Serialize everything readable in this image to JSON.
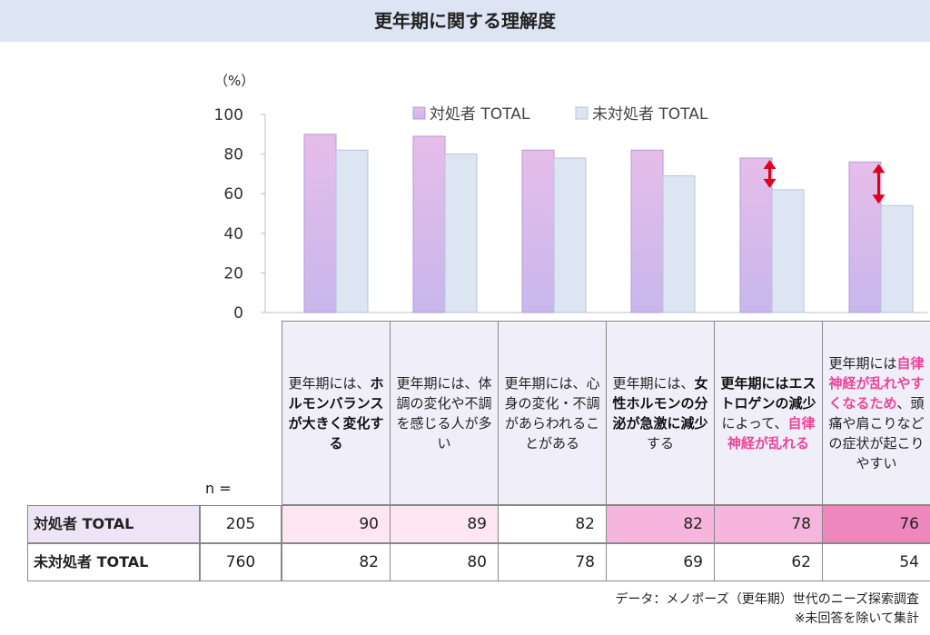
{
  "title": "更年期に関する理解度",
  "unit_label": "（%）",
  "chart_data": {
    "type": "bar",
    "ylim": [
      0,
      100
    ],
    "yticks": [
      "0",
      "20",
      "40",
      "60",
      "80",
      "100"
    ],
    "grid": false,
    "legend_placement": "top",
    "categories": [
      "更年期には、ホルモンバランスが大きく変化する",
      "更年期には、体調の変化や不調を感じる人が多い",
      "更年期には、心身の変化・不調があらわれることがある",
      "更年期には、女性ホルモンの分泌が急激に減少する",
      "更年期にはエストロゲンの減少によって、自律神経が乱れる",
      "更年期には自律神経が乱れやすくなるため、頭痛や肩こりなどの症状が起こりやすい"
    ],
    "series": [
      {
        "name": "対処者 TOTAL",
        "values": [
          90,
          89,
          82,
          82,
          78,
          76
        ],
        "color": "#d9b5e8"
      },
      {
        "name": "未対処者 TOTAL",
        "values": [
          82,
          80,
          78,
          69,
          62,
          54
        ],
        "color": "#dde5f3"
      }
    ],
    "annotations": [
      "red double arrow between series at category 5",
      "red double arrow between series at category 6"
    ]
  },
  "table": {
    "n_label": "n =",
    "headers": [
      [
        {
          "t": "更年期には、"
        },
        {
          "t": "ホルモンバランスが大きく変化する",
          "s": "black"
        }
      ],
      [
        {
          "t": "更年期には、体調の変化や不調を感じる人が多い"
        }
      ],
      [
        {
          "t": "更年期には、心身の変化・不調があらわれることがある"
        }
      ],
      [
        {
          "t": "更年期には、"
        },
        {
          "t": "女性ホルモンの分泌が急激に減少",
          "s": "black"
        },
        {
          "t": "する"
        }
      ],
      [
        {
          "t": "更年期にはエストロゲンの減少",
          "s": "black"
        },
        {
          "t": "によって、"
        },
        {
          "t": "自律神経が乱れる",
          "s": "pink"
        }
      ],
      [
        {
          "t": "更年期には"
        },
        {
          "t": "自律神経が乱れやすくなるため",
          "s": "pink"
        },
        {
          "t": "、頭痛や肩こりなどの症状が起こりやすい"
        }
      ]
    ],
    "rows": [
      {
        "label": "対処者 TOTAL",
        "n": "205",
        "values": [
          "90",
          "89",
          "82",
          "82",
          "78",
          "76"
        ],
        "colors": [
          "#fde6f1",
          "#fde6f1",
          "#ffffff",
          "#f5b5dc",
          "#f5b5dc",
          "#ee87be"
        ]
      },
      {
        "label": "未対処者 TOTAL",
        "n": "760",
        "values": [
          "82",
          "80",
          "78",
          "69",
          "62",
          "54"
        ],
        "colors": [
          "#ffffff",
          "#ffffff",
          "#ffffff",
          "#ffffff",
          "#ffffff",
          "#ffffff"
        ]
      }
    ],
    "row_label_colors": [
      "#ede4f6",
      "#ffffff"
    ]
  },
  "footnotes": [
    "データ：メノポーズ（更年期）世代のニーズ探索調査",
    "※未回答を除いて集計"
  ]
}
